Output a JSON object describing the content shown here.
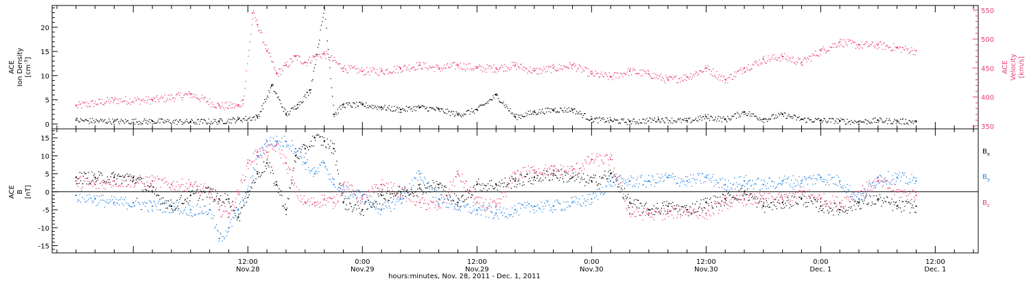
{
  "chart_data": [
    {
      "type": "scatter",
      "title": "",
      "ylabel": "ACE Ion Density [cm^-3]",
      "ylabel_lines": [
        "ACE",
        "Ion Density",
        "[cm",
        "-3",
        "]"
      ],
      "ylim": [
        -1,
        24.5
      ],
      "yticks": [
        0,
        5,
        10,
        15,
        20
      ],
      "y2label": "ACE Velocity [km/s]",
      "y2label_lines": [
        "ACE",
        "Velocity",
        "[km/s]"
      ],
      "y2lim": [
        345,
        558
      ],
      "y2ticks": [
        350,
        400,
        450,
        500,
        550
      ],
      "series": [
        {
          "name": "Ion Density",
          "color": "#000000",
          "axis": "left",
          "x": [
            -18,
            -14,
            -10,
            -6,
            -3,
            -1,
            1,
            2.5,
            4,
            5.2,
            6.5,
            8,
            9,
            10,
            12,
            14,
            16,
            18,
            20,
            22,
            24,
            26,
            28,
            30,
            32,
            34,
            36,
            38,
            40,
            43,
            46,
            48,
            50,
            52,
            54,
            56,
            58,
            60,
            62,
            64,
            66,
            68,
            70
          ],
          "y": [
            0.8,
            0.6,
            0.6,
            0.5,
            0.6,
            1.0,
            1.5,
            8,
            2,
            4,
            7,
            24,
            2,
            4,
            4,
            3.5,
            3,
            3.5,
            3,
            2,
            3,
            6,
            1.5,
            2.5,
            3,
            3,
            1,
            0.8,
            0.5,
            1,
            0.7,
            1.5,
            1,
            2.5,
            1,
            2,
            1,
            0.8,
            0.7,
            0.5,
            0.8,
            0.6,
            0.6
          ]
        },
        {
          "name": "Velocity",
          "color": "#e63a6d",
          "axis": "right",
          "x": [
            -18,
            -14,
            -10,
            -6,
            -3,
            -1,
            -0.5,
            0.5,
            1,
            2,
            3,
            4,
            5,
            6,
            7,
            8,
            10,
            12,
            14,
            16,
            18,
            20,
            22,
            24,
            26,
            28,
            30,
            32,
            34,
            36,
            38,
            40,
            42,
            44,
            46,
            48,
            50,
            52,
            54,
            56,
            58,
            60,
            62,
            64,
            66,
            68,
            70
          ],
          "y": [
            385,
            395,
            395,
            405,
            385,
            385,
            395,
            545,
            525,
            480,
            440,
            455,
            470,
            460,
            470,
            475,
            450,
            445,
            445,
            450,
            455,
            450,
            455,
            450,
            450,
            455,
            445,
            450,
            455,
            440,
            435,
            445,
            440,
            430,
            435,
            450,
            430,
            450,
            465,
            470,
            460,
            480,
            495,
            490,
            490,
            485,
            480
          ]
        }
      ]
    },
    {
      "type": "scatter",
      "title": "",
      "ylabel": "ACE B [nT]",
      "ylabel_lines": [
        "ACE",
        "B",
        "[nT]"
      ],
      "ylim": [
        -17,
        17.5
      ],
      "yticks": [
        -15,
        -10,
        -5,
        0,
        5,
        10,
        15
      ],
      "zero_line": true,
      "series": [
        {
          "name": "Bx",
          "color": "#000000",
          "x": [
            -18,
            -16,
            -14,
            -12,
            -10,
            -8,
            -6,
            -4,
            -3,
            -2,
            -1,
            0,
            1,
            2,
            3,
            4,
            5,
            6,
            7,
            8,
            9,
            10,
            12,
            14,
            16,
            18,
            20,
            22,
            24,
            26,
            28,
            30,
            32,
            34,
            36,
            38,
            40,
            42,
            44,
            46,
            48,
            50,
            52,
            54,
            56,
            58,
            60,
            62,
            64,
            66,
            68,
            70
          ],
          "y": [
            4,
            4,
            4,
            4,
            0,
            -4,
            -1,
            0,
            -2,
            -2,
            -7,
            0,
            5,
            8,
            2,
            -5,
            10,
            12,
            15,
            14,
            12,
            -3,
            -5,
            -1,
            0,
            1,
            2,
            -3,
            2,
            2,
            3,
            4,
            5,
            4,
            3,
            5,
            -3,
            -5,
            -4,
            -5,
            -3,
            -2,
            0,
            -4,
            -3,
            -2,
            -4,
            -5,
            -3,
            -2,
            -4,
            -4
          ]
        },
        {
          "name": "By",
          "color": "#1a7fe0",
          "x": [
            -18,
            -16,
            -14,
            -12,
            -10,
            -8,
            -6,
            -4,
            -3,
            -2,
            -1,
            0,
            1,
            2,
            3,
            4,
            5,
            6,
            7,
            8,
            9,
            10,
            12,
            14,
            16,
            18,
            20,
            22,
            24,
            26,
            28,
            30,
            32,
            34,
            36,
            38,
            40,
            42,
            44,
            46,
            48,
            50,
            52,
            54,
            56,
            58,
            60,
            62,
            64,
            66,
            68,
            70
          ],
          "y": [
            -1,
            -2,
            -3,
            -3,
            -4,
            -4,
            -5,
            -5,
            -13,
            -10,
            -5,
            0,
            10,
            14,
            14,
            14,
            12,
            8,
            5,
            8,
            2,
            0,
            -1,
            -5,
            -2,
            5,
            -2,
            -4,
            -5,
            -6,
            -5,
            -4,
            -4,
            -3,
            -2,
            3,
            3,
            3,
            4,
            3,
            4,
            2,
            3,
            2,
            3,
            3,
            4,
            3,
            -2,
            4,
            4,
            3
          ]
        },
        {
          "name": "Bz",
          "color": "#e63a6d",
          "x": [
            -18,
            -16,
            -14,
            -12,
            -10,
            -8,
            -6,
            -4,
            -3,
            -2,
            -1,
            0,
            1,
            2,
            3,
            4,
            5,
            6,
            7,
            8,
            9,
            10,
            12,
            14,
            16,
            18,
            20,
            22,
            24,
            26,
            28,
            30,
            32,
            34,
            36,
            38,
            40,
            42,
            44,
            46,
            48,
            50,
            52,
            54,
            56,
            58,
            60,
            62,
            64,
            66,
            68,
            70
          ],
          "y": [
            3,
            2,
            3,
            3,
            3,
            2,
            2,
            0,
            -5,
            -6,
            0,
            8,
            11,
            11,
            13,
            8,
            0,
            -3,
            -3,
            -2,
            -3,
            2,
            -2,
            2,
            0,
            -3,
            -4,
            5,
            -3,
            -4,
            5,
            6,
            6,
            6,
            9,
            9,
            -6,
            -6,
            -6,
            -5,
            -6,
            -3,
            -2,
            -2,
            -2,
            0,
            -2,
            -3,
            0,
            3,
            0,
            -1
          ]
        }
      ],
      "legend": {
        "placement": "right",
        "entries": [
          {
            "text": "B",
            "sub": "x",
            "color": "#000000"
          },
          {
            "text": "B",
            "sub": "y",
            "color": "#1a7fe0"
          },
          {
            "text": "B",
            "sub": "z",
            "color": "#e63a6d"
          }
        ]
      }
    }
  ],
  "x_axis": {
    "xlim": [
      -20.5,
      76.5
    ],
    "ticks": [
      {
        "x": 0,
        "time": "12:00",
        "date": "Nov.28"
      },
      {
        "x": 12,
        "time": "0:00",
        "date": "Nov.29"
      },
      {
        "x": 24,
        "time": "12:00",
        "date": "Nov.29"
      },
      {
        "x": 36,
        "time": "0:00",
        "date": "Nov.30"
      },
      {
        "x": 48,
        "time": "12:00",
        "date": "Nov.30"
      },
      {
        "x": 60,
        "time": "0:00",
        "date": "Dec. 1"
      },
      {
        "x": 72,
        "time": "12:00",
        "date": "Dec. 1"
      }
    ],
    "label": "hours:minutes, Nov. 28, 2011 - Dec.  1, 2011"
  }
}
